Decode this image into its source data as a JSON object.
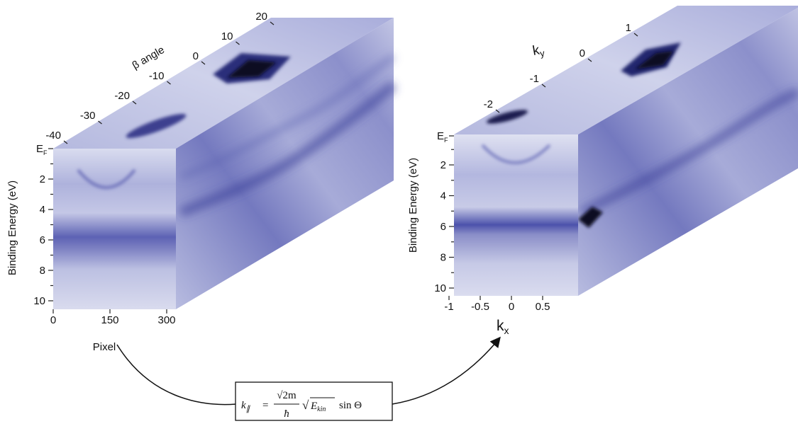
{
  "left_cube": {
    "depth_axis": {
      "label": "β angle",
      "ticks": [
        "-40",
        "-30",
        "-20",
        "-10",
        "0",
        "10",
        "20"
      ]
    },
    "y_axis": {
      "label": "Binding Energy (eV)",
      "fermi_tick": {
        "main": "E",
        "sub": "F"
      },
      "ticks": [
        "2",
        "4",
        "6",
        "8",
        "10"
      ]
    },
    "x_axis": {
      "label": "Pixel",
      "ticks": [
        "0",
        "150",
        "300"
      ]
    }
  },
  "right_cube": {
    "depth_axis": {
      "label": {
        "main": "k",
        "sub": "y"
      },
      "ticks": [
        "-2",
        "-1",
        "0",
        "1"
      ]
    },
    "y_axis": {
      "label": "Binding Energy (eV)",
      "fermi_tick": {
        "main": "E",
        "sub": "F"
      },
      "ticks": [
        "2",
        "4",
        "6",
        "8",
        "10"
      ]
    },
    "x_axis": {
      "label": {
        "main": "k",
        "sub": "x"
      },
      "ticks": [
        "-1",
        "-0.5",
        "0",
        "0.5"
      ]
    }
  },
  "formula": {
    "lhs": "k",
    "lhs_sub": "∥",
    "equals": "=",
    "numerator": "√2m",
    "denominator": "ħ",
    "root": "√",
    "energy": "E",
    "energy_sub": "kin",
    "trig": "sin Θ"
  }
}
